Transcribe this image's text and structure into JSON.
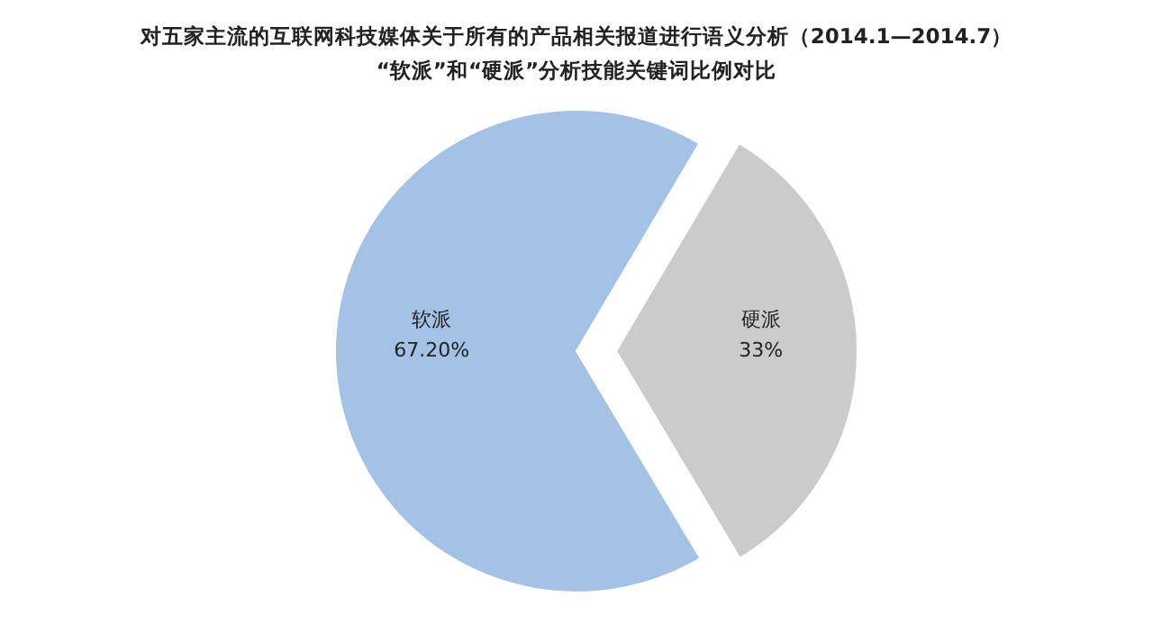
{
  "chart_data": {
    "type": "pie",
    "title": "对五家主流的互联网科技媒体关于所有的产品相关报道进行语义分析（2014.1—2014.7）",
    "subtitle": "“软派”和“硬派”分析技能关键词比例对比",
    "categories": [
      "软派",
      "硬派"
    ],
    "values": [
      67.2,
      33
    ],
    "value_labels": [
      "67.20%",
      "33%"
    ],
    "colors": [
      "#a4c2e6",
      "#cbcbcb"
    ]
  }
}
